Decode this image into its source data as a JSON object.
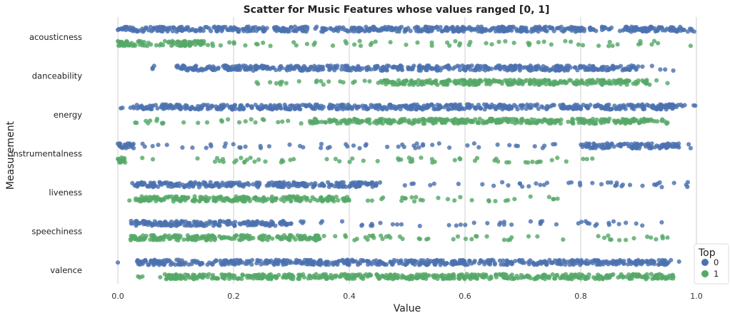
{
  "chart_data": {
    "type": "scatter",
    "title": "Scatter for Music Features whose values ranged [0, 1]",
    "xlabel": "Value",
    "ylabel": "Measurement",
    "xlim": [
      0,
      1
    ],
    "xticks": [
      "0.0",
      "0.2",
      "0.4",
      "0.6",
      "0.8",
      "1.0"
    ],
    "grid": "vertical",
    "categories": [
      "acousticness",
      "danceability",
      "energy",
      "instrumentalness",
      "liveness",
      "speechiness",
      "valence"
    ],
    "legend": {
      "title": "Top",
      "placement": "bottom-right",
      "entries": [
        {
          "label": "0",
          "color": "#4c72b0"
        },
        {
          "label": "1",
          "color": "#55a868"
        }
      ]
    },
    "series": [
      {
        "name": "0",
        "color": "#4c72b0",
        "ranges": [
          {
            "category": "acousticness",
            "min": 0.0,
            "max": 0.996,
            "dense": [
              [
                0.0,
                0.996
              ]
            ]
          },
          {
            "category": "danceability",
            "min": 0.06,
            "max": 0.96,
            "dense": [
              [
                0.1,
                0.9
              ]
            ]
          },
          {
            "category": "energy",
            "min": 0.005,
            "max": 0.998,
            "dense": [
              [
                0.02,
                0.98
              ]
            ]
          },
          {
            "category": "instrumentalness",
            "min": 0.0,
            "max": 0.99,
            "dense": [
              [
                0.0,
                0.03
              ],
              [
                0.8,
                0.97
              ]
            ]
          },
          {
            "category": "liveness",
            "min": 0.025,
            "max": 0.985,
            "dense": [
              [
                0.03,
                0.45
              ]
            ]
          },
          {
            "category": "speechiness",
            "min": 0.023,
            "max": 0.94,
            "dense": [
              [
                0.023,
                0.3
              ]
            ]
          },
          {
            "category": "valence",
            "min": 0.0,
            "max": 0.97,
            "dense": [
              [
                0.03,
                0.96
              ]
            ]
          }
        ]
      },
      {
        "name": "1",
        "color": "#55a868",
        "ranges": [
          {
            "category": "acousticness",
            "min": 0.0,
            "max": 0.99,
            "dense": [
              [
                0.0,
                0.15
              ]
            ]
          },
          {
            "category": "danceability",
            "min": 0.24,
            "max": 0.95,
            "dense": [
              [
                0.45,
                0.92
              ]
            ]
          },
          {
            "category": "energy",
            "min": 0.03,
            "max": 0.95,
            "dense": [
              [
                0.33,
                0.93
              ]
            ]
          },
          {
            "category": "instrumentalness",
            "min": 0.0,
            "max": 0.82,
            "dense": [
              [
                0.0,
                0.015
              ]
            ]
          },
          {
            "category": "liveness",
            "min": 0.02,
            "max": 0.76,
            "dense": [
              [
                0.03,
                0.4
              ]
            ]
          },
          {
            "category": "speechiness",
            "min": 0.022,
            "max": 0.95,
            "dense": [
              [
                0.022,
                0.35
              ]
            ]
          },
          {
            "category": "valence",
            "min": 0.035,
            "max": 0.96,
            "dense": [
              [
                0.08,
                0.96
              ]
            ]
          }
        ]
      }
    ]
  }
}
